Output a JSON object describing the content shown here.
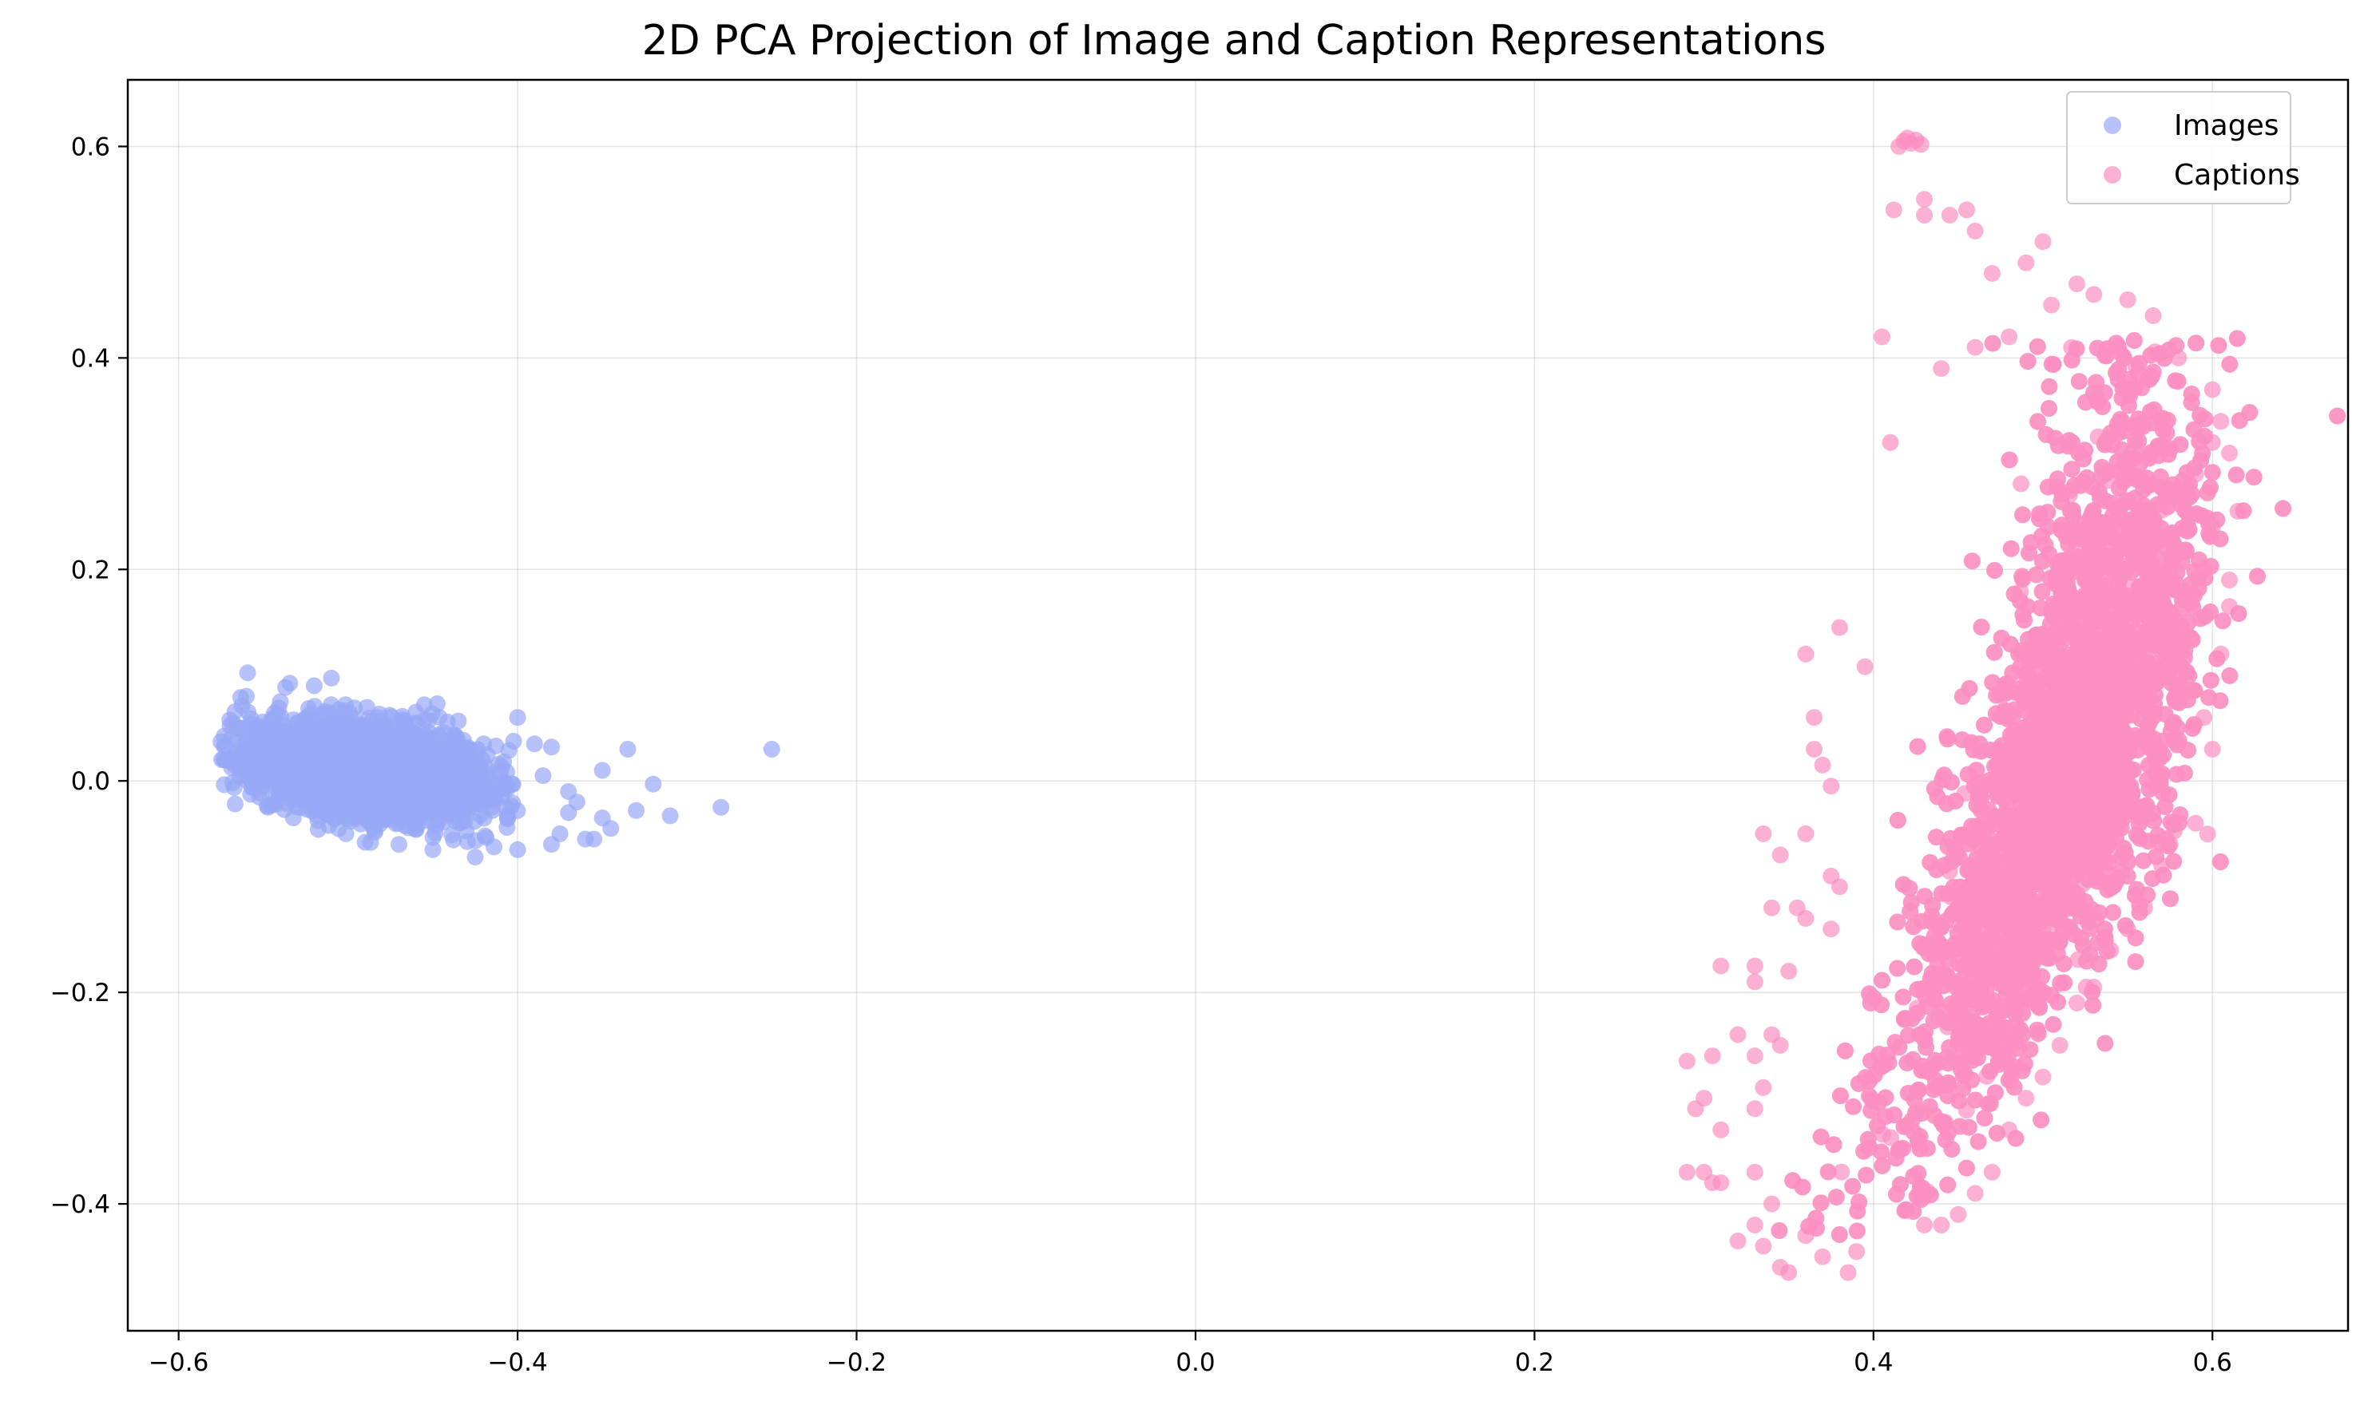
{
  "chart_data": {
    "type": "scatter",
    "title": "2D PCA Projection of Image and Caption Representations",
    "xlabel": "",
    "ylabel": "",
    "xlim": [
      -0.63,
      0.68
    ],
    "ylim": [
      -0.52,
      0.663
    ],
    "x_ticks": [
      -0.6,
      -0.4,
      -0.2,
      0.0,
      0.2,
      0.4,
      0.6
    ],
    "x_tick_labels": [
      "−0.6",
      "−0.4",
      "−0.2",
      "0.0",
      "0.2",
      "0.4",
      "0.6"
    ],
    "y_ticks": [
      -0.4,
      -0.2,
      0.0,
      0.2,
      0.4,
      0.6
    ],
    "y_tick_labels": [
      "−0.4",
      "−0.2",
      "0.0",
      "0.2",
      "0.4",
      "0.6"
    ],
    "grid": true,
    "legend_position": "top-right",
    "series": [
      {
        "name": "Images",
        "color": "#97a8f7",
        "dense_cluster": {
          "center": [
            -0.49,
            0.01
          ],
          "spread_x": 0.035,
          "spread_y": 0.022,
          "tilt": -0.2,
          "count": 2200
        },
        "points": [
          [
            -0.25,
            0.03
          ],
          [
            -0.28,
            -0.025
          ],
          [
            -0.31,
            -0.033
          ],
          [
            -0.32,
            -0.003
          ],
          [
            -0.33,
            -0.028
          ],
          [
            -0.335,
            0.03
          ],
          [
            -0.345,
            -0.045
          ],
          [
            -0.35,
            -0.035
          ],
          [
            -0.35,
            0.01
          ],
          [
            -0.355,
            -0.055
          ],
          [
            -0.36,
            -0.055
          ],
          [
            -0.365,
            -0.02
          ],
          [
            -0.37,
            -0.03
          ],
          [
            -0.375,
            -0.05
          ],
          [
            -0.38,
            -0.06
          ],
          [
            -0.38,
            0.032
          ],
          [
            -0.39,
            0.035
          ],
          [
            -0.4,
            0.06
          ],
          [
            -0.4,
            -0.065
          ],
          [
            -0.42,
            0.035
          ],
          [
            -0.425,
            -0.072
          ],
          [
            -0.455,
            0.072
          ],
          [
            -0.46,
            0.065
          ],
          [
            -0.575,
            0.037
          ],
          [
            -0.565,
            0.05
          ],
          [
            -0.56,
            0.08
          ],
          [
            -0.52,
            0.09
          ],
          [
            -0.54,
            0.075
          ],
          [
            -0.51,
            0.072
          ],
          [
            -0.555,
            0.003
          ],
          [
            -0.45,
            -0.065
          ],
          [
            -0.47,
            -0.06
          ],
          [
            -0.49,
            -0.058
          ],
          [
            -0.385,
            0.005
          ],
          [
            -0.37,
            -0.01
          ]
        ]
      },
      {
        "name": "Captions",
        "color": "#fb8fc1",
        "dense_cluster": {
          "center": [
            0.5,
            0.02
          ],
          "spread_x": 0.028,
          "spread_y": 0.17,
          "curve": 0.3,
          "count": 5200
        },
        "points": [
          [
            0.415,
            0.6
          ],
          [
            0.418,
            0.605
          ],
          [
            0.42,
            0.608
          ],
          [
            0.422,
            0.603
          ],
          [
            0.425,
            0.606
          ],
          [
            0.428,
            0.602
          ],
          [
            0.412,
            0.54
          ],
          [
            0.43,
            0.55
          ],
          [
            0.43,
            0.535
          ],
          [
            0.445,
            0.535
          ],
          [
            0.455,
            0.54
          ],
          [
            0.46,
            0.52
          ],
          [
            0.5,
            0.51
          ],
          [
            0.49,
            0.49
          ],
          [
            0.47,
            0.48
          ],
          [
            0.405,
            0.42
          ],
          [
            0.41,
            0.32
          ],
          [
            0.38,
            0.145
          ],
          [
            0.36,
            0.12
          ],
          [
            0.395,
            0.108
          ],
          [
            0.365,
            0.06
          ],
          [
            0.365,
            0.03
          ],
          [
            0.37,
            0.015
          ],
          [
            0.375,
            -0.005
          ],
          [
            0.335,
            -0.05
          ],
          [
            0.36,
            -0.05
          ],
          [
            0.345,
            -0.07
          ],
          [
            0.375,
            -0.09
          ],
          [
            0.38,
            -0.1
          ],
          [
            0.34,
            -0.12
          ],
          [
            0.355,
            -0.12
          ],
          [
            0.36,
            -0.13
          ],
          [
            0.375,
            -0.14
          ],
          [
            0.31,
            -0.175
          ],
          [
            0.33,
            -0.175
          ],
          [
            0.35,
            -0.18
          ],
          [
            0.33,
            -0.19
          ],
          [
            0.32,
            -0.24
          ],
          [
            0.33,
            -0.26
          ],
          [
            0.34,
            -0.24
          ],
          [
            0.345,
            -0.25
          ],
          [
            0.29,
            -0.265
          ],
          [
            0.305,
            -0.26
          ],
          [
            0.295,
            -0.31
          ],
          [
            0.3,
            -0.3
          ],
          [
            0.31,
            -0.33
          ],
          [
            0.33,
            -0.31
          ],
          [
            0.335,
            -0.29
          ],
          [
            0.29,
            -0.37
          ],
          [
            0.3,
            -0.37
          ],
          [
            0.305,
            -0.38
          ],
          [
            0.31,
            -0.38
          ],
          [
            0.33,
            -0.37
          ],
          [
            0.33,
            -0.42
          ],
          [
            0.32,
            -0.435
          ],
          [
            0.335,
            -0.44
          ],
          [
            0.345,
            -0.46
          ],
          [
            0.35,
            -0.465
          ],
          [
            0.37,
            -0.45
          ],
          [
            0.385,
            -0.465
          ],
          [
            0.39,
            -0.445
          ],
          [
            0.36,
            -0.43
          ],
          [
            0.34,
            -0.4
          ],
          [
            0.6,
            0.37
          ],
          [
            0.605,
            0.34
          ],
          [
            0.6,
            0.32
          ],
          [
            0.61,
            0.31
          ],
          [
            0.615,
            0.255
          ],
          [
            0.61,
            0.19
          ],
          [
            0.61,
            0.165
          ],
          [
            0.605,
            0.12
          ],
          [
            0.595,
            0.06
          ],
          [
            0.6,
            0.03
          ],
          [
            0.59,
            -0.04
          ],
          [
            0.575,
            -0.06
          ],
          [
            0.57,
            -0.08
          ],
          [
            0.56,
            -0.12
          ],
          [
            0.55,
            -0.14
          ],
          [
            0.54,
            -0.16
          ],
          [
            0.53,
            -0.195
          ],
          [
            0.52,
            -0.21
          ],
          [
            0.51,
            -0.25
          ],
          [
            0.5,
            -0.28
          ],
          [
            0.49,
            -0.3
          ],
          [
            0.48,
            -0.33
          ],
          [
            0.47,
            -0.37
          ],
          [
            0.46,
            -0.39
          ],
          [
            0.45,
            -0.41
          ],
          [
            0.44,
            -0.42
          ],
          [
            0.43,
            -0.42
          ],
          [
            0.595,
            0.2
          ],
          [
            0.6,
            0.24
          ],
          [
            0.59,
            0.29
          ],
          [
            0.58,
            0.4
          ],
          [
            0.565,
            0.44
          ],
          [
            0.55,
            0.455
          ],
          [
            0.53,
            0.46
          ],
          [
            0.52,
            0.47
          ],
          [
            0.505,
            0.45
          ],
          [
            0.48,
            0.42
          ],
          [
            0.46,
            0.41
          ],
          [
            0.44,
            0.39
          ]
        ]
      }
    ]
  }
}
